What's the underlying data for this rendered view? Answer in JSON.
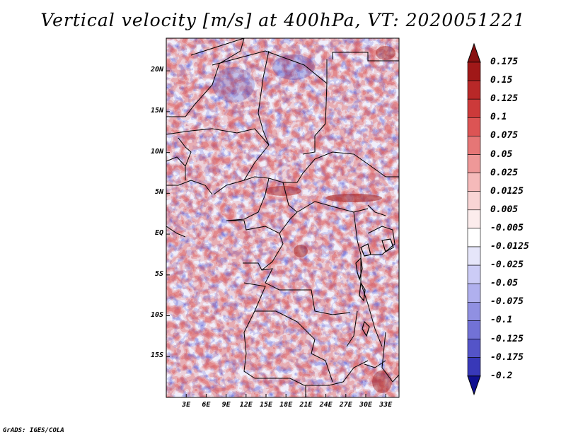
{
  "title": "Vertical velocity [m/s] at 400hPa, VT: 2020051221",
  "footer": "GrADS: IGES/COLA",
  "map": {
    "variable": "Vertical velocity",
    "units": "m/s",
    "level": "400hPa",
    "valid_time": "2020051221",
    "lon_range": [
      0,
      35
    ],
    "lat_range": [
      -20,
      24
    ],
    "lon_ticks": [
      {
        "value": 3,
        "label": "3E"
      },
      {
        "value": 6,
        "label": "6E"
      },
      {
        "value": 9,
        "label": "9E"
      },
      {
        "value": 12,
        "label": "12E"
      },
      {
        "value": 15,
        "label": "15E"
      },
      {
        "value": 18,
        "label": "18E"
      },
      {
        "value": 21,
        "label": "21E"
      },
      {
        "value": 24,
        "label": "24E"
      },
      {
        "value": 27,
        "label": "27E"
      },
      {
        "value": 30,
        "label": "30E"
      },
      {
        "value": 33,
        "label": "33E"
      }
    ],
    "lat_ticks": [
      {
        "value": 20,
        "label": "20N"
      },
      {
        "value": 15,
        "label": "15N"
      },
      {
        "value": 10,
        "label": "10N"
      },
      {
        "value": 5,
        "label": "5N"
      },
      {
        "value": 0,
        "label": "EQ"
      },
      {
        "value": -5,
        "label": "5S"
      },
      {
        "value": -10,
        "label": "10S"
      },
      {
        "value": -15,
        "label": "15S"
      }
    ]
  },
  "colorbar": {
    "levels": [
      {
        "label": "0.175",
        "color": "#a01818"
      },
      {
        "label": "0.15",
        "color": "#b82828"
      },
      {
        "label": "0.125",
        "color": "#cc3a3a"
      },
      {
        "label": "0.1",
        "color": "#dc5454"
      },
      {
        "label": "0.075",
        "color": "#e67676"
      },
      {
        "label": "0.05",
        "color": "#ee9898"
      },
      {
        "label": "0.025",
        "color": "#f5baba"
      },
      {
        "label": "0.0125",
        "color": "#f9d4d4"
      },
      {
        "label": "0.005",
        "color": "#fcecec"
      },
      {
        "label": "-0.005",
        "color": "#ffffff"
      },
      {
        "label": "-0.0125",
        "color": "#e6e6fa"
      },
      {
        "label": "-0.025",
        "color": "#ccccf6"
      },
      {
        "label": "-0.05",
        "color": "#b0b0ee"
      },
      {
        "label": "-0.075",
        "color": "#9090e2"
      },
      {
        "label": "-0.1",
        "color": "#7272d6"
      },
      {
        "label": "-0.125",
        "color": "#5454c8"
      },
      {
        "label": "-0.175",
        "color": "#3838b8"
      },
      {
        "label": "-0.2",
        "color": "#2020a4"
      }
    ],
    "top_color": "#881010",
    "bottom_color": "#101090"
  }
}
